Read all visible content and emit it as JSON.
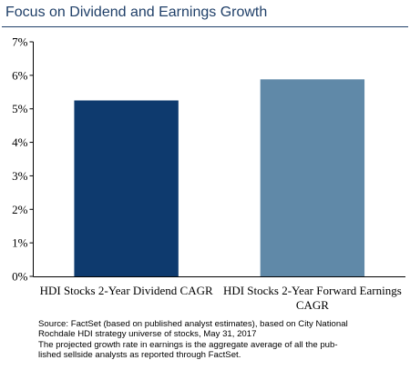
{
  "title": "Focus on Dividend and Earnings Growth",
  "chart_data": {
    "type": "bar",
    "categories": [
      [
        "HDI Stocks 2-Year Dividend CAGR"
      ],
      [
        "HDI Stocks 2-Year Forward Earnings",
        "CAGR"
      ]
    ],
    "values": [
      5.25,
      5.88
    ],
    "colors": [
      "#0e3a6e",
      "#6089a8"
    ],
    "ylim": [
      0,
      7
    ],
    "yticks": [
      "0%",
      "1%",
      "2%",
      "3%",
      "4%",
      "5%",
      "6%",
      "7%"
    ],
    "xlabel": "",
    "ylabel": ""
  },
  "source_lines": [
    "Source: FactSet (based on published analyst estimates), based on City National",
    "Rochdale HDI strategy universe of stocks, May 31, 2017",
    "The projected growth rate in earnings is the aggregate average of all the pub-",
    "lished sellside analysts as reported through FactSet."
  ]
}
